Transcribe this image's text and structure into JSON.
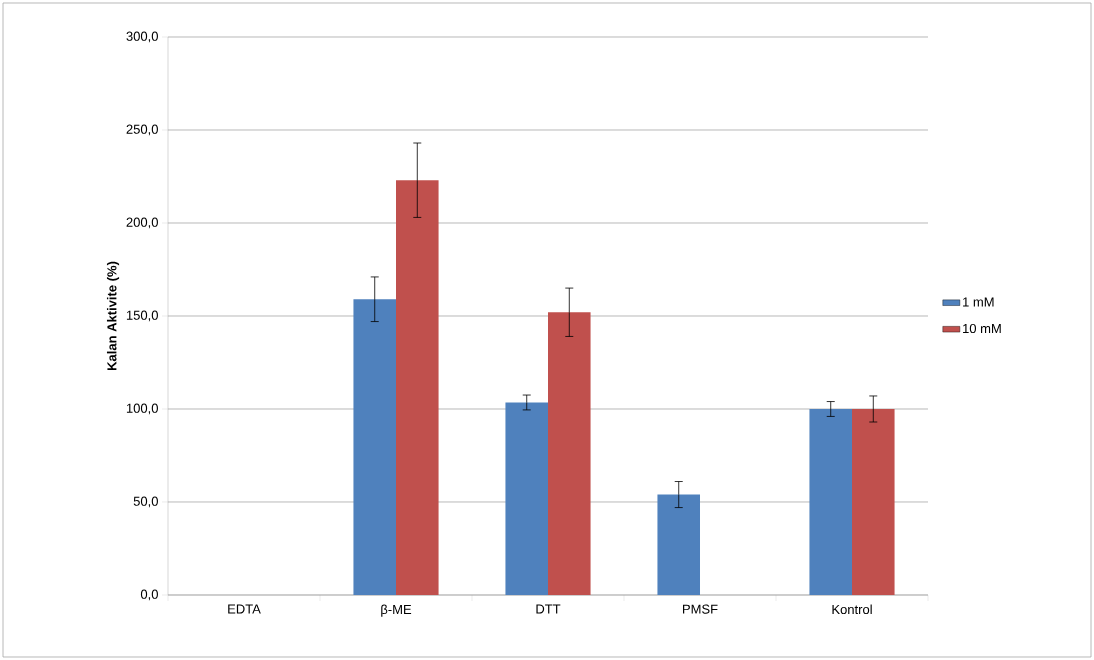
{
  "chart_data": {
    "type": "bar",
    "ylabel": "Kalan Aktivite (%)",
    "categories": [
      "EDTA",
      "β-ME",
      "DTT",
      "PMSF",
      "Kontrol"
    ],
    "series": [
      {
        "name": "1 mM",
        "color": "#4f81bd",
        "values": [
          0,
          159,
          103.5,
          54,
          100
        ],
        "errors": [
          null,
          12,
          4,
          7,
          4
        ]
      },
      {
        "name": "10 mM",
        "color": "#c0504d",
        "values": [
          0,
          223,
          152,
          0,
          100
        ],
        "errors": [
          null,
          20,
          13,
          null,
          7
        ]
      }
    ],
    "ylim": [
      0,
      300
    ],
    "yticks": [
      {
        "value": 0,
        "label": "0,0"
      },
      {
        "value": 50,
        "label": "50,0"
      },
      {
        "value": 100,
        "label": "100,0"
      },
      {
        "value": 150,
        "label": "150,0"
      },
      {
        "value": 200,
        "label": "200,0"
      },
      {
        "value": 250,
        "label": "250,0"
      },
      {
        "value": 300,
        "label": "300,0"
      }
    ],
    "grid": "y",
    "legend": "right"
  }
}
